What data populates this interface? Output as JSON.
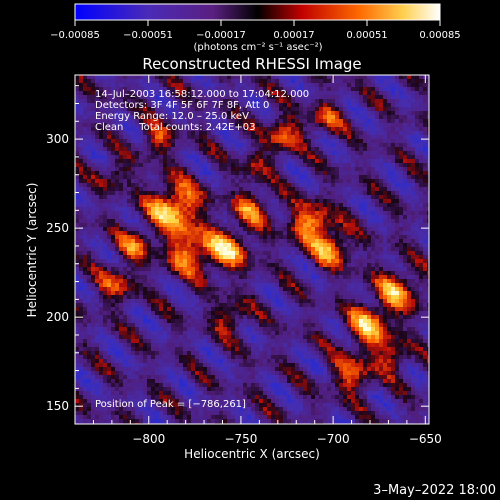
{
  "chart_data": {
    "type": "heatmap",
    "title": "Reconstructed RHESSI Image",
    "xlabel": "Heliocentric X (arcsec)",
    "ylabel": "Heliocentric Y (arcsec)",
    "xlim": [
      -840,
      -648
    ],
    "ylim": [
      140,
      336
    ],
    "x_ticks": [
      -800,
      -750,
      -700,
      -650
    ],
    "x_tick_labels": [
      "−800",
      "−750",
      "−700",
      "−650"
    ],
    "y_ticks": [
      150,
      200,
      250,
      300
    ],
    "y_tick_labels": [
      "150",
      "200",
      "250",
      "300"
    ],
    "colorbar": {
      "range": [
        -0.00085,
        0.00085
      ],
      "ticks": [
        -0.00085,
        -0.00051,
        -0.00017,
        0.00017,
        0.00051,
        0.00085
      ],
      "tick_labels": [
        "−0.00085",
        "−0.00051",
        "−0.00017",
        "0.00017",
        "0.00051",
        "0.00085"
      ],
      "unit_label": "(photons cm⁻² s⁻¹ asec⁻²)"
    },
    "info_lines": [
      "14–Jul–2003 16:58:12.000 to 17:04:12.000",
      "Detectors: 3F 4F 5F 6F 7F 8F, Att 0",
      "Energy Range: 12.0 – 25.0 keV",
      "Clean     Total counts: 2.42E+03"
    ],
    "peak_label": "Position of Peak = [−786,261]",
    "peak_position": [
      -786,
      261
    ],
    "grid": false,
    "colormap": [
      "#0000ff",
      "#5a2fa0",
      "#000000",
      "#c01010",
      "#ff8800",
      "#ffffa0",
      "#ffffff"
    ]
  },
  "footer": {
    "timestamp": "3–May–2022 18:00"
  }
}
